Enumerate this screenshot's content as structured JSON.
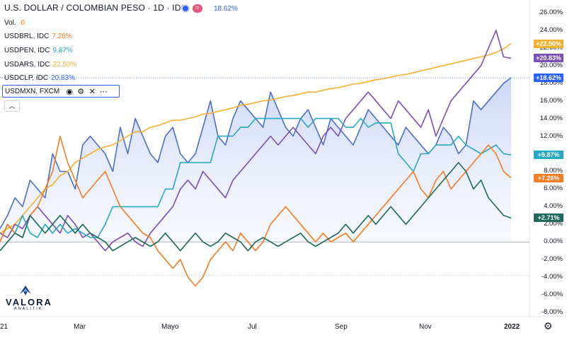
{
  "header": {
    "title": "U.S. DOLLAR / COLOMBIAN PESO · 1D · IDC",
    "value": "18.62%"
  },
  "volume": {
    "label": "Vol.",
    "value": "0"
  },
  "legend_items": [
    {
      "label": "USDBRL, IDC",
      "value": "7.26%",
      "color": "#f57c20"
    },
    {
      "label": "USDPEN, IDC",
      "value": "9.87%",
      "color": "#26a9c4"
    },
    {
      "label": "USDARS, IDC",
      "value": "22.50%",
      "color": "#f5b031"
    },
    {
      "label": "USDCLP, IDC",
      "value": "20.83%",
      "color": "#2962ff"
    }
  ],
  "toolbar": {
    "label": "USDMXN, FXCM",
    "icons": [
      "eye-icon",
      "gear-icon",
      "close-icon",
      "more-icon"
    ]
  },
  "logo": {
    "name": "VALORA",
    "sub": "ANALITIK"
  },
  "chart_data": {
    "type": "line",
    "x_ticks": [
      "21",
      "Mar",
      "Mayo",
      "Jul",
      "Sep",
      "Nov",
      "2022"
    ],
    "y_ticks": [
      "26.00%",
      "24.00%",
      "22.00%",
      "20.00%",
      "18.00%",
      "16.00%",
      "14.00%",
      "12.00%",
      "10.00%",
      "8.00%",
      "6.00%",
      "4.00%",
      "2.00%",
      "0.00%",
      "-2.00%",
      "-4.00%",
      "-6.00%",
      "-8.00%"
    ],
    "ylim": [
      -8,
      26
    ],
    "baseline": 0,
    "series": [
      {
        "name": "USDCOP",
        "color": "#4a6fcf",
        "area": true,
        "tag": "+18.62%",
        "values": [
          1.5,
          3,
          5,
          4,
          7,
          6,
          5,
          10,
          8,
          8,
          6,
          11,
          12,
          11,
          10,
          8,
          13,
          10,
          14,
          12,
          10,
          9,
          12,
          13,
          10,
          9,
          10,
          13,
          16,
          12,
          11,
          14,
          16,
          15,
          14,
          13,
          17,
          15,
          13,
          12,
          14,
          15,
          13,
          11,
          14,
          13,
          12,
          11,
          13,
          15,
          14,
          13,
          12,
          11,
          13,
          12,
          11,
          10,
          11,
          13,
          12,
          10,
          11,
          16,
          15,
          16,
          17,
          18,
          18.62
        ]
      },
      {
        "name": "USDARS",
        "color": "#f5b031",
        "tag": "+22.50%",
        "values": [
          1,
          1.5,
          2,
          3,
          4,
          5,
          6,
          6.5,
          7.5,
          8,
          9,
          9.5,
          10,
          10.5,
          10.8,
          11,
          11.5,
          12,
          12.5,
          12.5,
          13,
          13.2,
          13.5,
          13.8,
          13.8,
          14,
          14.2,
          14.5,
          14.6,
          14.8,
          15,
          15.2,
          15.5,
          15.6,
          15.8,
          16,
          16.1,
          16.3,
          16.5,
          16.6,
          16.8,
          17,
          17,
          17.2,
          17.4,
          17.5,
          17.7,
          17.9,
          18,
          18.2,
          18.4,
          18.5,
          18.7,
          18.9,
          19,
          19.2,
          19.4,
          19.6,
          19.8,
          20,
          20.2,
          20.4,
          20.6,
          20.8,
          21,
          21.2,
          21.5,
          21.9,
          22.5
        ]
      },
      {
        "name": "USDCLP",
        "color": "#7b4fb8",
        "tag": "+20.83%",
        "values": [
          1,
          0.5,
          2,
          1.5,
          3,
          4,
          3,
          2,
          1,
          3,
          2,
          0.5,
          1,
          0,
          -1,
          0,
          0.5,
          1,
          0,
          -0.5,
          1,
          2,
          3,
          4,
          6,
          7,
          6,
          8,
          7,
          6,
          5,
          7,
          8,
          9,
          10,
          11,
          12,
          11,
          12,
          13,
          12,
          11,
          10,
          12,
          13,
          12,
          14,
          15,
          16,
          17,
          16,
          15,
          14,
          16,
          15,
          14,
          13,
          15,
          12,
          14,
          16,
          17,
          18,
          19,
          20,
          22,
          24,
          21,
          20.83
        ]
      },
      {
        "name": "USDPEN",
        "color": "#26a9c4",
        "tag": "+9.87%",
        "values": [
          0,
          2,
          1,
          3,
          1,
          0.5,
          2,
          1,
          2,
          1,
          1.5,
          1,
          0.5,
          0.5,
          2,
          4,
          4,
          4,
          4,
          4,
          4,
          4,
          6,
          6,
          9,
          9,
          9,
          9,
          9,
          12,
          12,
          12,
          13,
          13,
          14,
          14,
          14,
          14,
          14,
          14,
          14,
          13,
          14,
          14,
          14,
          14,
          13,
          13,
          14,
          13,
          13.5,
          13.5,
          13.5,
          10,
          9,
          8,
          10,
          10,
          11,
          11,
          11,
          12,
          11,
          10.5,
          10,
          10.5,
          11,
          10,
          9.87
        ]
      },
      {
        "name": "USDBRL",
        "color": "#f57c20",
        "tag": "+7.26%",
        "values": [
          0,
          2,
          1,
          0.5,
          3,
          4,
          6,
          8,
          12,
          9,
          7,
          5,
          6,
          7,
          8,
          6,
          4,
          3,
          2,
          1,
          0.5,
          -1,
          -2,
          -3,
          -2,
          -4,
          -5,
          -4,
          -2,
          -1,
          0,
          -1,
          1,
          0,
          -1,
          0,
          2,
          3,
          4,
          3,
          2,
          1,
          0,
          1,
          0,
          0.5,
          1,
          0,
          1,
          2,
          3,
          4,
          5,
          6,
          7,
          8,
          6,
          5,
          7,
          8,
          6,
          7,
          8,
          9,
          10,
          11,
          10,
          8,
          7.26
        ]
      },
      {
        "name": "USDMXN",
        "color": "#1e6b5b",
        "tag": "+2.71%",
        "values": [
          -1,
          0,
          1,
          0.5,
          3,
          2,
          1,
          2,
          3,
          2,
          1,
          2,
          1,
          0.5,
          0,
          -1,
          -0.5,
          0,
          0.5,
          0,
          -0.5,
          0,
          1,
          0,
          -1,
          0,
          1,
          0,
          -0.5,
          0,
          1,
          0.5,
          0,
          -1,
          0,
          0.5,
          0,
          -0.5,
          0,
          0.5,
          1,
          0,
          -0.5,
          0,
          0.5,
          1,
          2,
          1,
          2,
          3,
          2,
          3,
          4,
          3,
          2,
          3,
          4,
          5,
          6,
          7,
          8,
          9,
          8,
          6,
          7,
          5,
          4,
          3,
          2.71
        ]
      }
    ]
  }
}
